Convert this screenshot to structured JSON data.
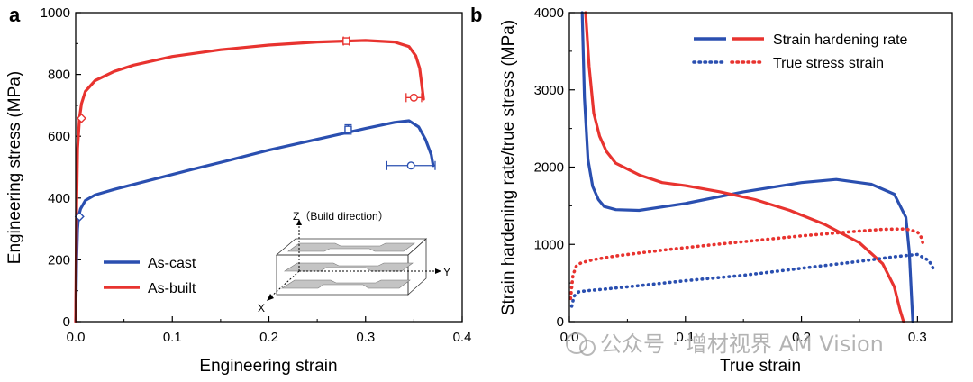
{
  "chart_data": [
    {
      "panel_label": "a",
      "type": "line",
      "xlabel": "Engineering strain",
      "ylabel": "Engineering stress (MPa)",
      "xlim": [
        0,
        0.4
      ],
      "ylim": [
        0,
        1000
      ],
      "x_ticks": [
        "0.0",
        "0.1",
        "0.2",
        "0.3",
        "0.4"
      ],
      "y_ticks": [
        "0",
        "200",
        "400",
        "600",
        "800",
        "1000"
      ],
      "legend_position": "bottom-left",
      "series": [
        {
          "name": "As-cast",
          "color": "#2a4fb0",
          "style": "solid",
          "x": [
            0,
            0.001,
            0.002,
            0.003,
            0.005,
            0.01,
            0.02,
            0.04,
            0.08,
            0.12,
            0.16,
            0.2,
            0.25,
            0.3,
            0.33,
            0.345,
            0.355,
            0.362,
            0.368,
            0.37
          ],
          "y": [
            0,
            200,
            300,
            340,
            365,
            392,
            410,
            428,
            460,
            492,
            523,
            555,
            590,
            625,
            645,
            650,
            630,
            590,
            540,
            505
          ]
        },
        {
          "name": "As-built",
          "color": "#e8332f",
          "style": "solid",
          "x": [
            0,
            0.001,
            0.002,
            0.004,
            0.006,
            0.01,
            0.02,
            0.04,
            0.06,
            0.1,
            0.15,
            0.2,
            0.25,
            0.3,
            0.33,
            0.345,
            0.352,
            0.356,
            0.358,
            0.36
          ],
          "y": [
            0,
            380,
            560,
            660,
            705,
            745,
            780,
            810,
            830,
            858,
            880,
            895,
            905,
            910,
            905,
            890,
            860,
            820,
            770,
            720
          ]
        }
      ],
      "markers": [
        {
          "series": "As-cast",
          "shape": "square",
          "x": 0.282,
          "y": 622,
          "x_error": 0.0,
          "y_error": 15
        },
        {
          "series": "As-cast",
          "shape": "circle",
          "x": 0.347,
          "y": 505,
          "x_error": 0.025,
          "y_error": 0
        },
        {
          "series": "As-cast",
          "shape": "diamond",
          "x": 0.004,
          "y": 340,
          "x_error": 0,
          "y_error": 0
        },
        {
          "series": "As-built",
          "shape": "square",
          "x": 0.28,
          "y": 908,
          "x_error": 0.003,
          "y_error": 0
        },
        {
          "series": "As-built",
          "shape": "circle",
          "x": 0.35,
          "y": 725,
          "x_error": 0.008,
          "y_error": 0
        },
        {
          "series": "As-built",
          "shape": "diamond",
          "x": 0.006,
          "y": 658,
          "x_error": 0,
          "y_error": 0
        }
      ],
      "inset": {
        "z_label": "Z（Build direction）",
        "y_label": "Y",
        "x_label": "X"
      }
    },
    {
      "panel_label": "b",
      "type": "line",
      "xlabel": "True strain",
      "ylabel": "Strain hardening rate/true stress (MPa)",
      "xlim": [
        0,
        0.33
      ],
      "ylim": [
        0,
        4000
      ],
      "x_ticks": [
        "0.0",
        "0.1",
        "0.2",
        "0.3"
      ],
      "y_ticks": [
        "0",
        "1000",
        "2000",
        "3000",
        "4000"
      ],
      "legend_position": "top-right",
      "legend": [
        {
          "label": "Strain hardening rate",
          "style": "solid"
        },
        {
          "label": "True stress strain",
          "style": "dotted"
        }
      ],
      "series": [
        {
          "name": "Strain hardening rate (As-cast)",
          "color": "#2a4fb0",
          "style": "solid",
          "x": [
            0.011,
            0.013,
            0.016,
            0.02,
            0.025,
            0.03,
            0.04,
            0.06,
            0.1,
            0.15,
            0.2,
            0.23,
            0.26,
            0.28,
            0.29,
            0.293,
            0.295,
            0.296
          ],
          "y": [
            4000,
            2900,
            2100,
            1750,
            1580,
            1490,
            1450,
            1440,
            1530,
            1680,
            1800,
            1840,
            1780,
            1650,
            1350,
            900,
            300,
            0
          ]
        },
        {
          "name": "Strain hardening rate (As-built)",
          "color": "#e8332f",
          "style": "solid",
          "x": [
            0.014,
            0.017,
            0.021,
            0.026,
            0.032,
            0.04,
            0.06,
            0.08,
            0.1,
            0.13,
            0.16,
            0.19,
            0.22,
            0.25,
            0.27,
            0.28,
            0.285,
            0.288
          ],
          "y": [
            4000,
            3300,
            2700,
            2400,
            2200,
            2050,
            1900,
            1800,
            1760,
            1680,
            1580,
            1440,
            1260,
            1020,
            750,
            450,
            150,
            0
          ]
        },
        {
          "name": "True stress strain (As-cast)",
          "color": "#2a4fb0",
          "style": "dotted",
          "x": [
            0.002,
            0.004,
            0.008,
            0.015,
            0.03,
            0.06,
            0.1,
            0.15,
            0.2,
            0.25,
            0.28,
            0.3,
            0.31,
            0.315
          ],
          "y": [
            200,
            330,
            385,
            400,
            420,
            465,
            530,
            600,
            690,
            780,
            840,
            870,
            790,
            650
          ]
        },
        {
          "name": "True stress strain (As-built)",
          "color": "#e8332f",
          "style": "dotted",
          "x": [
            0.001,
            0.003,
            0.006,
            0.01,
            0.02,
            0.04,
            0.08,
            0.12,
            0.16,
            0.2,
            0.24,
            0.27,
            0.29,
            0.3,
            0.303,
            0.305
          ],
          "y": [
            300,
            600,
            720,
            760,
            800,
            850,
            925,
            990,
            1050,
            1110,
            1160,
            1195,
            1200,
            1160,
            1100,
            1000
          ]
        }
      ]
    }
  ],
  "watermark": "公众号 · 增材视界 AM Vision"
}
